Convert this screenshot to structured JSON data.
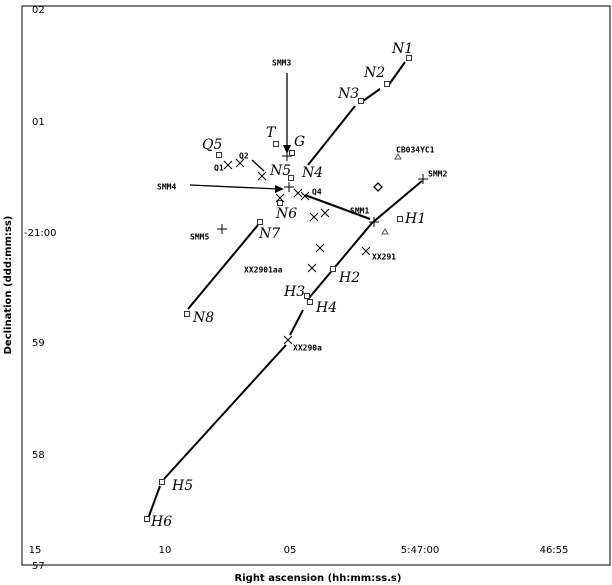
{
  "axes": {
    "x_label": "Right ascension (hh:mm:ss.s)",
    "y_label": "Declination (ddd:mm:ss)",
    "x_ticks": [
      "15",
      "10",
      "05",
      "5:47:00",
      "46:55"
    ],
    "y_ticks": [
      "02",
      "01",
      "-21:00",
      "59",
      "58",
      "57"
    ]
  },
  "labels": [
    "N1",
    "N2",
    "N3",
    "N4",
    "N5",
    "N6",
    "N7",
    "N8",
    "H1",
    "H2",
    "H3",
    "H4",
    "H5",
    "H6",
    "T",
    "G",
    "Q5",
    "SMM3",
    "CB034YC1",
    "SMM2",
    "SMM4",
    "Q4",
    "SMM1",
    "SMM5",
    "XX291",
    "XX2901aa",
    "XX290a",
    "Q2",
    "Q1"
  ]
}
